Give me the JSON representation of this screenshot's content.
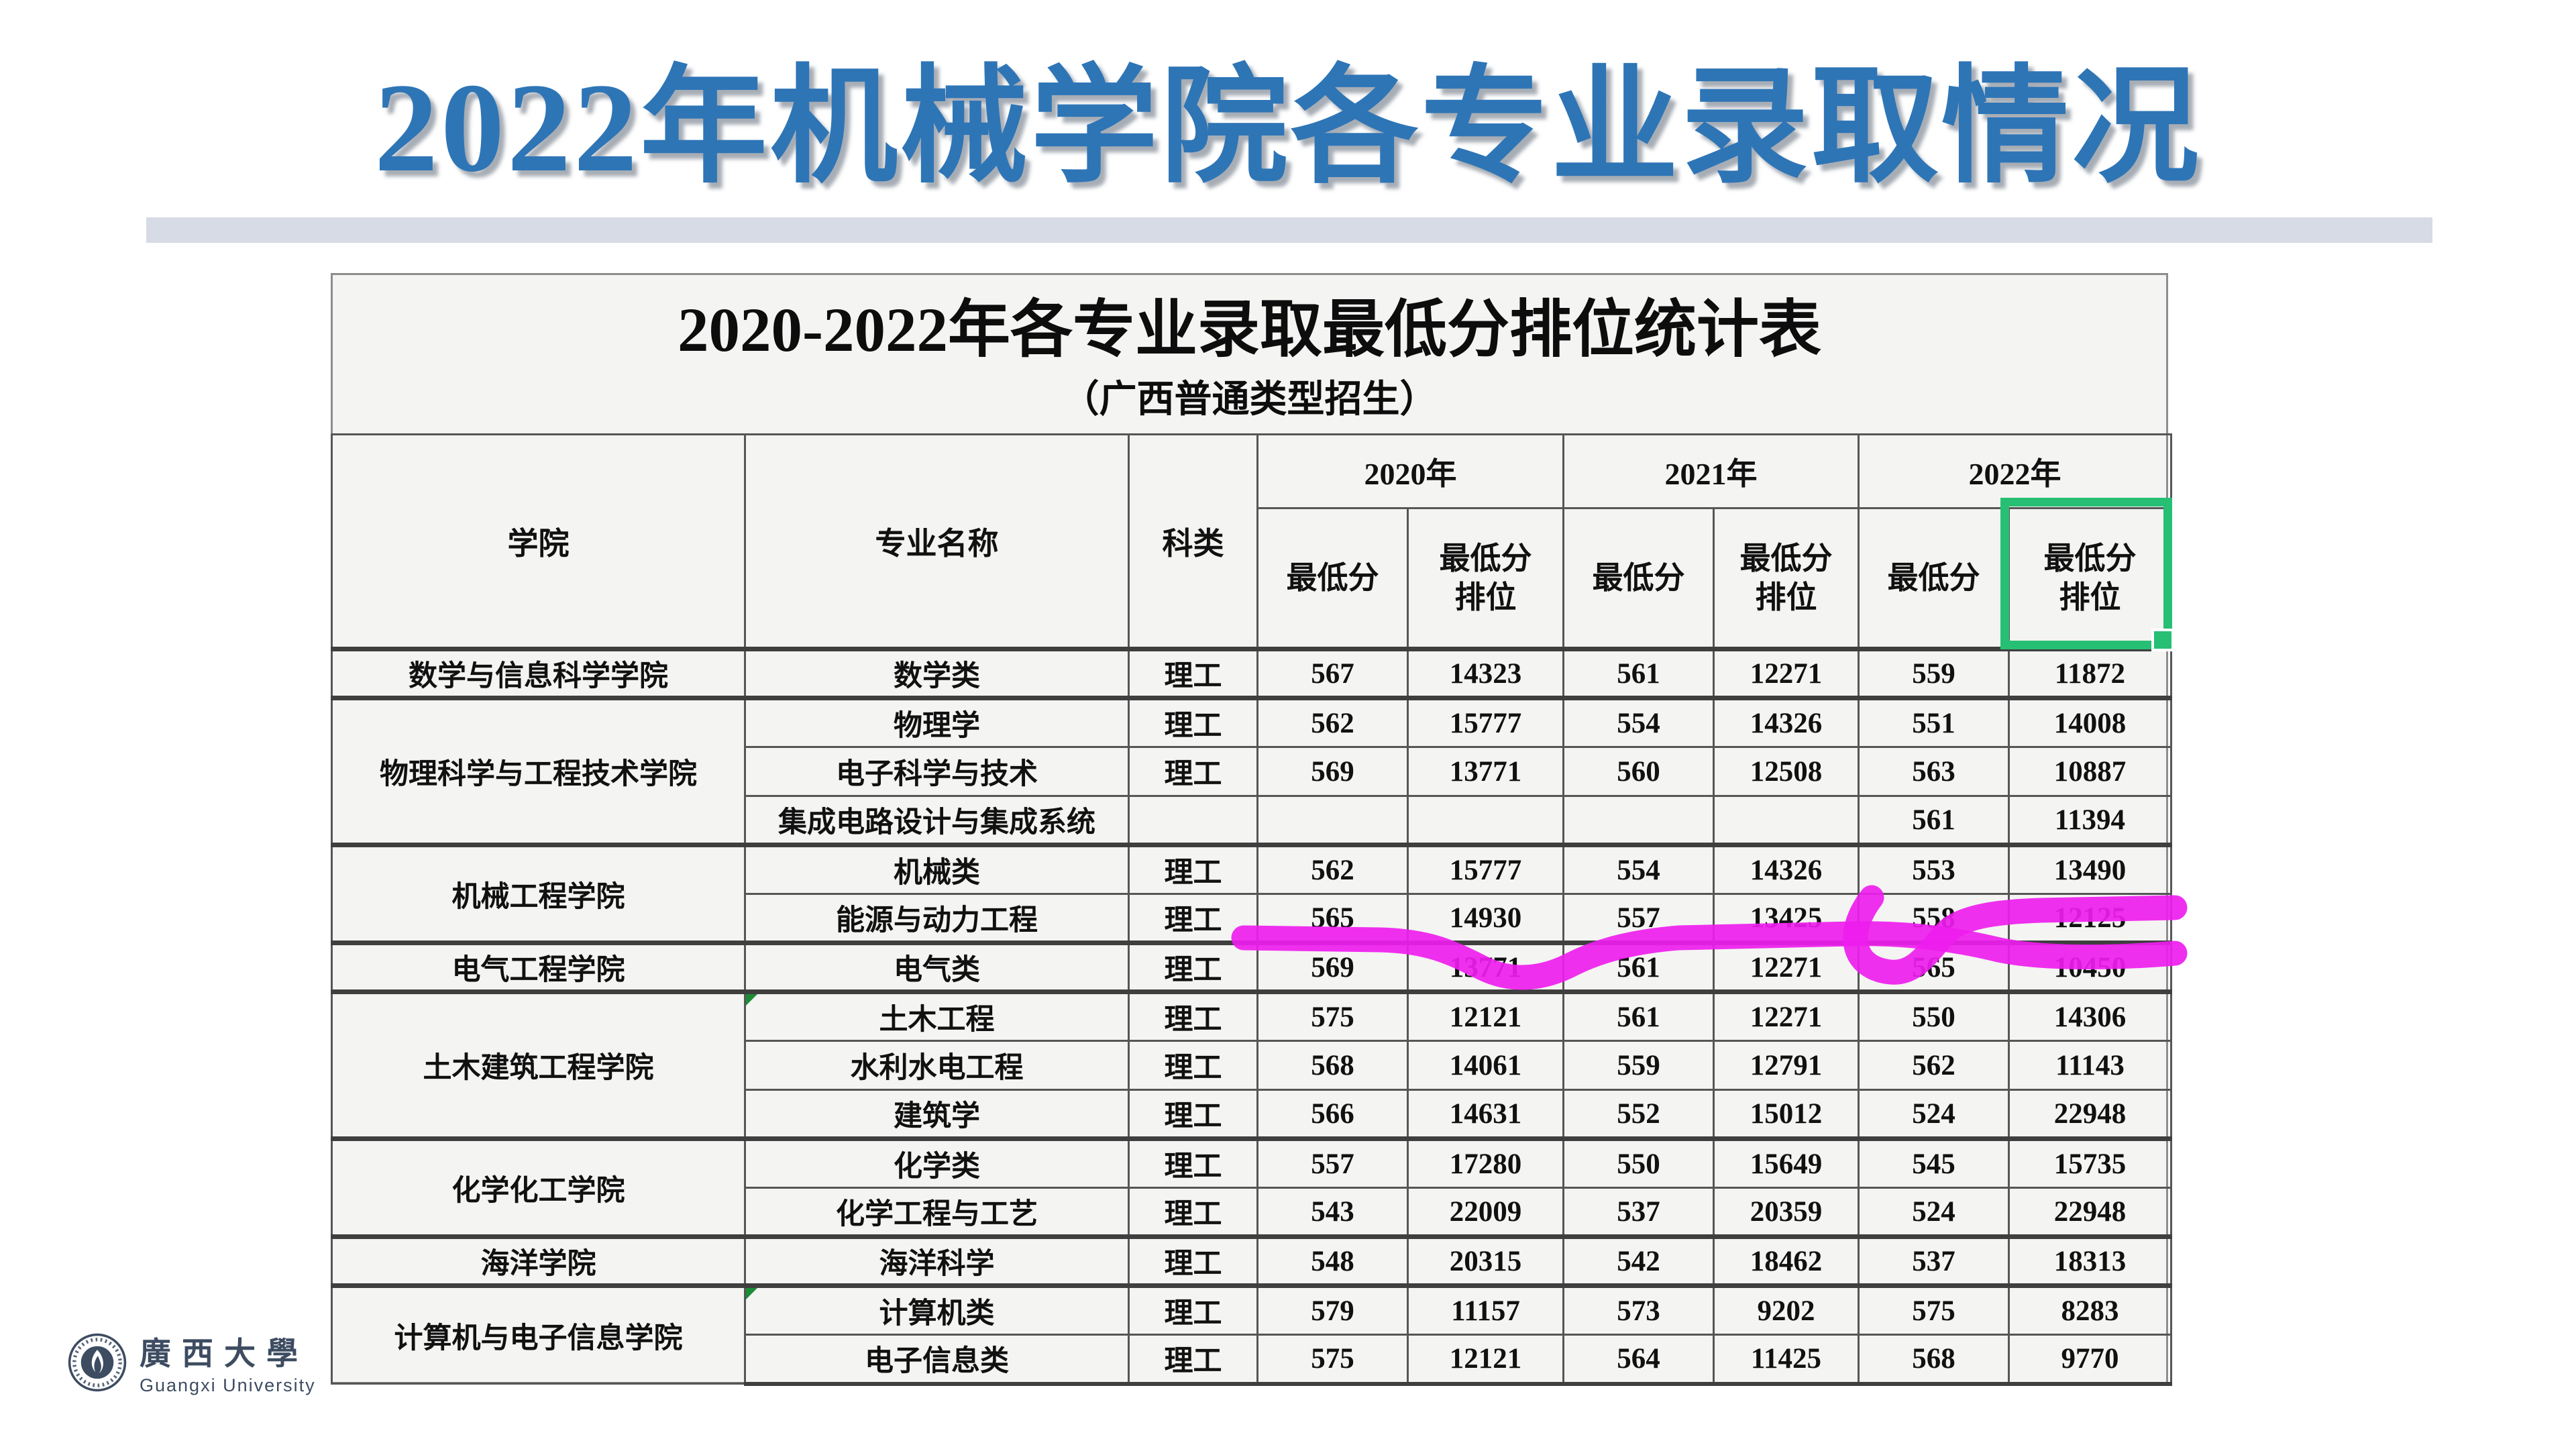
{
  "page": {
    "title": "2022年机械学院各专业录取情况"
  },
  "colors": {
    "title_blue": "#2e75b6",
    "underline_bar": "#d6dbe6",
    "panel_background": "#f4f4f2",
    "highlighter_magenta": "#ee1dee",
    "selection_green": "#27bf74",
    "error_corner_green": "#1c8c38",
    "logo_slate": "#3d4c61"
  },
  "table": {
    "title": "2020-2022年各专业录取最低分排位统计表",
    "subtitle": "（广西普通类型招生）",
    "headers": {
      "college": "学院",
      "major": "专业名称",
      "category": "科类",
      "score": "最低分",
      "rank_l1": "最低分",
      "rank_l2": "排位"
    },
    "years": [
      "2020年",
      "2021年",
      "2022年"
    ],
    "rows": [
      {
        "college": "数学与信息科学学院",
        "rowspan": 1,
        "major": "数学类",
        "category": "理工",
        "values": [
          "567",
          "14323",
          "561",
          "12271",
          "559",
          "11872"
        ]
      },
      {
        "college": "物理科学与工程技术学院",
        "rowspan": 3,
        "major": "物理学",
        "category": "理工",
        "values": [
          "562",
          "15777",
          "554",
          "14326",
          "551",
          "14008"
        ]
      },
      {
        "major": "电子科学与技术",
        "category": "理工",
        "values": [
          "569",
          "13771",
          "560",
          "12508",
          "563",
          "10887"
        ]
      },
      {
        "major": "集成电路设计与集成系统",
        "category": "",
        "values": [
          "",
          "",
          "",
          "",
          "561",
          "11394"
        ]
      },
      {
        "college": "机械工程学院",
        "rowspan": 2,
        "major": "机械类",
        "category": "理工",
        "values": [
          "562",
          "15777",
          "554",
          "14326",
          "553",
          "13490"
        ]
      },
      {
        "major": "能源与动力工程",
        "category": "理工",
        "values": [
          "565",
          "14930",
          "557",
          "13425",
          "558",
          "12125"
        ]
      },
      {
        "college": "电气工程学院",
        "rowspan": 1,
        "major": "电气类",
        "category": "理工",
        "values": [
          "569",
          "13771",
          "561",
          "12271",
          "565",
          "10450"
        ]
      },
      {
        "college": "土木建筑工程学院",
        "rowspan": 3,
        "major": "土木工程",
        "category": "理工",
        "corner": true,
        "values": [
          "575",
          "12121",
          "561",
          "12271",
          "550",
          "14306"
        ]
      },
      {
        "major": "水利水电工程",
        "category": "理工",
        "values": [
          "568",
          "14061",
          "559",
          "12791",
          "562",
          "11143"
        ]
      },
      {
        "major": "建筑学",
        "category": "理工",
        "values": [
          "566",
          "14631",
          "552",
          "15012",
          "524",
          "22948"
        ]
      },
      {
        "college": "化学化工学院",
        "rowspan": 2,
        "major": "化学类",
        "category": "理工",
        "values": [
          "557",
          "17280",
          "550",
          "15649",
          "545",
          "15735"
        ]
      },
      {
        "major": "化学工程与工艺",
        "category": "理工",
        "values": [
          "543",
          "22009",
          "537",
          "20359",
          "524",
          "22948"
        ]
      },
      {
        "college": "海洋学院",
        "rowspan": 1,
        "major": "海洋科学",
        "category": "理工",
        "values": [
          "548",
          "20315",
          "542",
          "18462",
          "537",
          "18313"
        ]
      },
      {
        "college": "计算机与电子信息学院",
        "rowspan": 2,
        "major": "计算机类",
        "category": "理工",
        "corner": true,
        "values": [
          "579",
          "11157",
          "573",
          "9202",
          "575",
          "8283"
        ]
      },
      {
        "major": "电子信息类",
        "category": "理工",
        "values": [
          "575",
          "12121",
          "564",
          "11425",
          "568",
          "9770"
        ]
      }
    ]
  },
  "logo": {
    "name_cn": "廣西大學",
    "name_en": "Guangxi University"
  }
}
